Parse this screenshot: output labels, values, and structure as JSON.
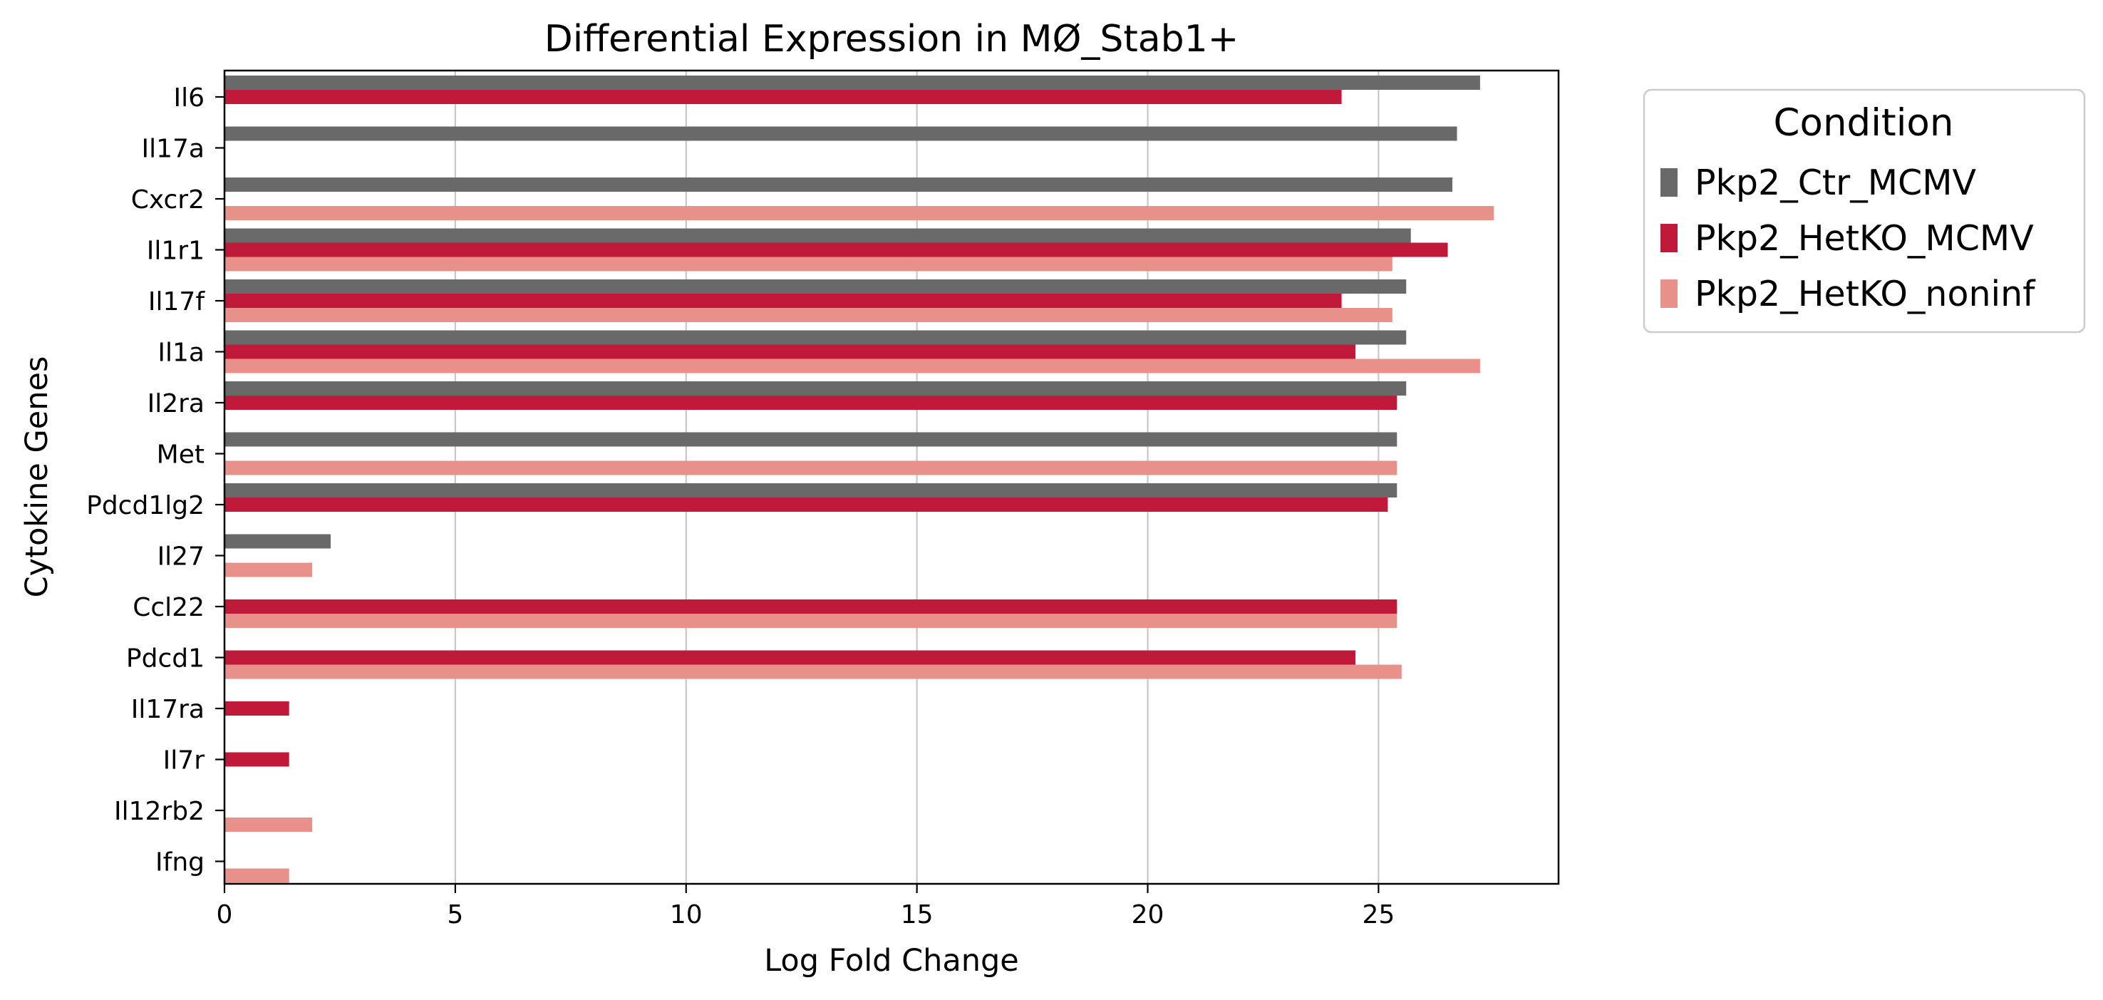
{
  "chart_data": {
    "type": "bar",
    "orientation": "horizontal",
    "title": "Differential Expression in MØ_Stab1+",
    "xlabel": "Log Fold Change",
    "ylabel": "Cytokine Genes",
    "xlim": [
      0,
      28.9
    ],
    "xticks": [
      0,
      5,
      10,
      15,
      20,
      25
    ],
    "grid": "vertical",
    "legend": {
      "title": "Condition",
      "position": "outside-right-top"
    },
    "categories": [
      "Il6",
      "Il17a",
      "Cxcr2",
      "Il1r1",
      "Il17f",
      "Il1a",
      "Il2ra",
      "Met",
      "Pdcd1lg2",
      "Il27",
      "Ccl22",
      "Pdcd1",
      "Il17ra",
      "Il7r",
      "Il12rb2",
      "Ifng"
    ],
    "series": [
      {
        "name": "Pkp2_Ctr_MCMV",
        "color": "#696969",
        "values": [
          27.2,
          26.7,
          26.6,
          25.7,
          25.6,
          25.6,
          25.6,
          25.4,
          25.4,
          2.3,
          null,
          null,
          null,
          null,
          null,
          null
        ]
      },
      {
        "name": "Pkp2_HetKO_MCMV",
        "color": "#C0193A",
        "values": [
          24.2,
          null,
          null,
          26.5,
          24.2,
          24.5,
          25.4,
          null,
          25.2,
          null,
          25.4,
          24.5,
          1.4,
          1.4,
          null,
          null
        ]
      },
      {
        "name": "Pkp2_HetKO_noninf",
        "color": "#E8918B",
        "values": [
          null,
          null,
          27.5,
          25.3,
          25.3,
          27.2,
          null,
          25.4,
          null,
          1.9,
          25.4,
          25.5,
          null,
          null,
          1.9,
          1.4
        ]
      }
    ]
  }
}
